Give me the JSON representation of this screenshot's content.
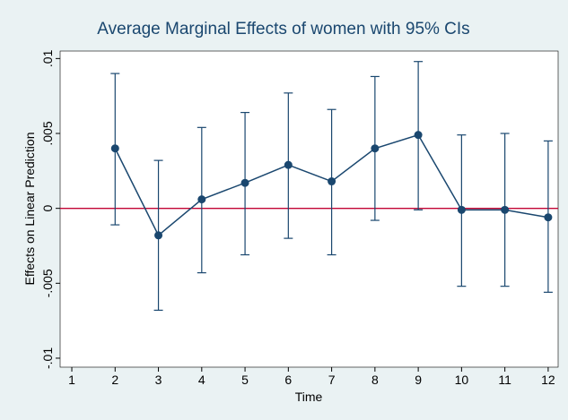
{
  "chart_data": {
    "type": "errorbar-line",
    "title": "Average Marginal Effects of women with 95% CIs",
    "x_label": "Time",
    "y_label": "Effects on Linear Prediction",
    "x": [
      2,
      3,
      4,
      5,
      6,
      7,
      8,
      9,
      10,
      11,
      12
    ],
    "series": [
      {
        "color": "#1a476f",
        "values": [
          0.004,
          -0.0018,
          0.0006,
          0.0017,
          0.0029,
          0.0018,
          0.004,
          0.0049,
          -0.0001,
          -0.0001,
          -0.0006
        ],
        "lower": [
          -0.0011,
          -0.0068,
          -0.0043,
          -0.0031,
          -0.002,
          -0.0031,
          -0.0008,
          -0.0001,
          -0.0052,
          -0.0052,
          -0.0056
        ],
        "upper": [
          0.009,
          0.0032,
          0.0054,
          0.0064,
          0.0077,
          0.0066,
          0.0088,
          0.0098,
          0.0049,
          0.005,
          0.0045
        ]
      }
    ],
    "xlim": [
      0.73,
      12.23
    ],
    "xticks": [
      1,
      2,
      3,
      4,
      5,
      6,
      7,
      8,
      9,
      10,
      11,
      12
    ],
    "ylim": [
      -0.0106,
      0.0105
    ],
    "yticks": [
      {
        "value": -0.01,
        "label": "-.01"
      },
      {
        "value": -0.005,
        "label": "-.005"
      },
      0,
      {
        "value": 0.005,
        "label": ".005"
      },
      {
        "value": 0.01,
        "label": ".01"
      }
    ],
    "reference_line": 0,
    "reference_color": "#c10534"
  }
}
